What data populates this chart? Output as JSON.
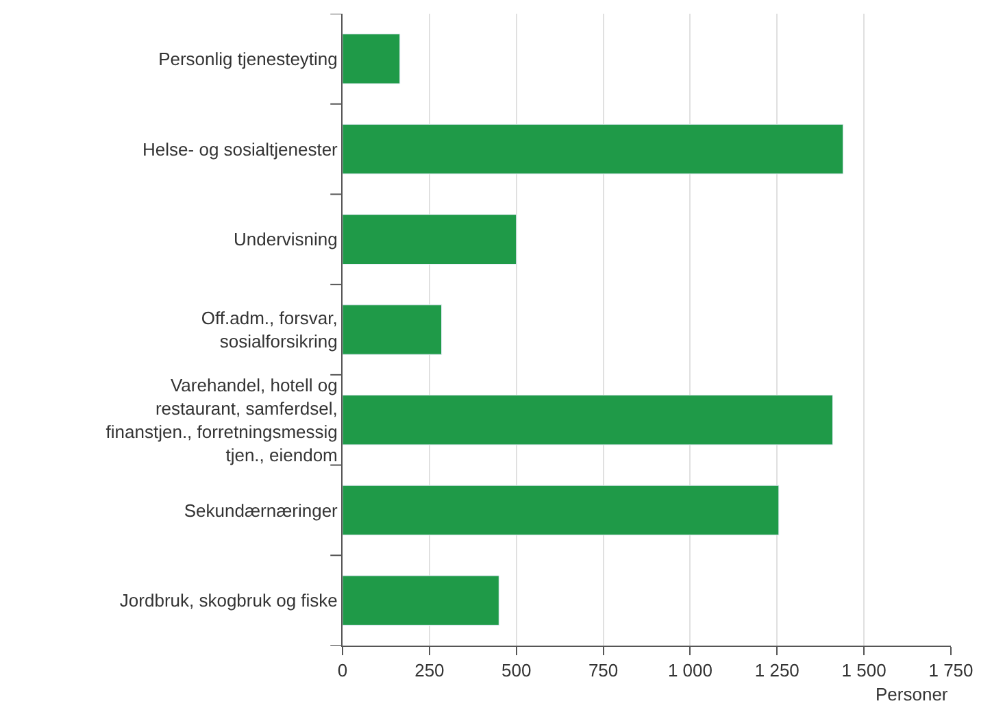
{
  "chart_data": {
    "type": "bar",
    "orientation": "horizontal",
    "xlabel": "Personer",
    "categories": [
      "Personlig tjenesteyting",
      "Helse- og sosialtjenester",
      "Undervisning",
      "Off.adm., forsvar, sosialforsikring",
      "Varehandel, hotell og restaurant, samferdsel, finanstjen., forretningsmessig tjen., eiendom",
      "Sekundærnæringer",
      "Jordbruk, skogbruk og fiske"
    ],
    "values": [
      165,
      1440,
      500,
      285,
      1410,
      1255,
      450
    ],
    "color": "#1f9a48",
    "xlim": [
      0,
      1750
    ],
    "xticks": [
      0,
      250,
      500,
      750,
      {
        "value": 1000,
        "label": "1 000"
      },
      {
        "value": 1250,
        "label": "1 250"
      },
      {
        "value": 1500,
        "label": "1 500"
      },
      {
        "value": 1750,
        "label": "1 750"
      }
    ],
    "grid": "x"
  }
}
